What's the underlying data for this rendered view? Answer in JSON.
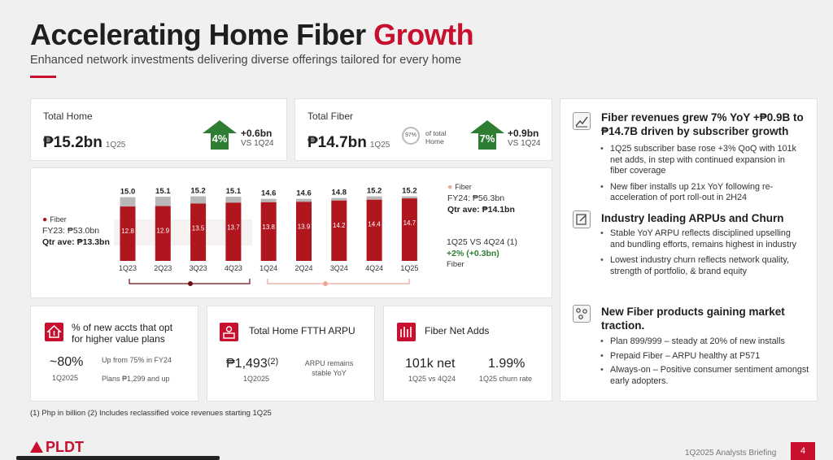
{
  "header": {
    "title_main": "Accelerating Home Fiber ",
    "title_highlight": "Growth",
    "subtitle": "Enhanced network investments delivering diverse offerings tailored for every home"
  },
  "total_home": {
    "label": "Total Home",
    "value": "₱15.2bn",
    "period": "1Q25",
    "growth": "4%",
    "delta": "+0.6bn",
    "delta_vs": "VS 1Q24"
  },
  "total_fiber": {
    "label": "Total Fiber",
    "value": "₱14.7bn",
    "period": "1Q25",
    "share": "97%",
    "share_label": "of total Home",
    "growth": "7%",
    "delta": "+0.9bn",
    "delta_vs": "VS 1Q24"
  },
  "chart_notes": {
    "fy23_legend": "Fiber",
    "fy23": "FY23: ₱53.0bn",
    "fy23_qtr": "Qtr ave: ₱13.3bn",
    "fy24_legend": "Fiber",
    "fy24": "FY24: ₱56.3bn",
    "fy24_qtr": "Qtr ave: ₱14.1bn",
    "qoq_label": "1Q25 VS 4Q24 (1)",
    "qoq_value": "+2% (+0.3bn)",
    "qoq_series": "Fiber"
  },
  "chart_data": {
    "type": "bar",
    "categories": [
      "1Q23",
      "2Q23",
      "3Q23",
      "4Q23",
      "1Q24",
      "2Q24",
      "3Q24",
      "4Q24",
      "1Q25"
    ],
    "totals": [
      "15.0",
      "15.1",
      "15.2",
      "15.1",
      "14.6",
      "14.6",
      "14.8",
      "15.2",
      "15.2"
    ],
    "series": [
      {
        "name": "Fiber",
        "values": [
          12.8,
          12.9,
          13.5,
          13.7,
          13.8,
          13.9,
          14.2,
          14.4,
          14.7
        ],
        "color": "#b0161e"
      },
      {
        "values": [
          2.2,
          2.2,
          1.7,
          1.4,
          0.8,
          0.7,
          0.6,
          0.8,
          0.5
        ],
        "color": "#b8b8b8"
      }
    ]
  },
  "kpis": {
    "opt_in": {
      "title": "% of new accts that opt for higher value plans",
      "value": "~80%",
      "period": "1Q2025",
      "note1": "Up from 75% in FY24",
      "note2": "Plans ₱1,299 and up"
    },
    "arpu": {
      "title": "Total Home FTTH ARPU",
      "value": "₱1,493",
      "sup": "(2)",
      "period": "1Q2025",
      "note": "ARPU remains stable YoY"
    },
    "net_adds": {
      "title": "Fiber Net Adds",
      "value": "101k net",
      "value_sub": "1Q25 vs 4Q24",
      "churn": "1.99%",
      "churn_sub": "1Q25 churn rate"
    }
  },
  "right_panel": {
    "section1": {
      "heading": "Fiber revenues grew 7% YoY +₱0.9B to ₱14.7B driven by subscriber growth",
      "bullets": [
        "1Q25 subscriber base rose +3% QoQ with 101k net adds, in step with continued expansion in fiber coverage",
        "New fiber installs up 21x YoY following re-acceleration of port roll-out in 2H24"
      ]
    },
    "section2": {
      "heading": "Industry leading ARPUs and Churn",
      "bullets": [
        "Stable YoY ARPU reflects disciplined upselling and bundling efforts, remains highest in industry",
        "Lowest industry churn reflects network quality, strength of portfolio, & brand equity"
      ]
    },
    "section3": {
      "heading": "New Fiber products gaining market traction.",
      "bullets": [
        "Plan 899/999 – steady at 20% of new installs",
        "Prepaid Fiber – ARPU healthy at P571",
        "Always-on – Positive consumer sentiment amongst early adopters."
      ]
    }
  },
  "footer": {
    "footnote": "(1) Php in billion  (2) Includes reclassified voice revenues starting 1Q25",
    "logo": "PLDT",
    "briefing": "1Q2025 Analysts Briefing",
    "page": "4"
  }
}
